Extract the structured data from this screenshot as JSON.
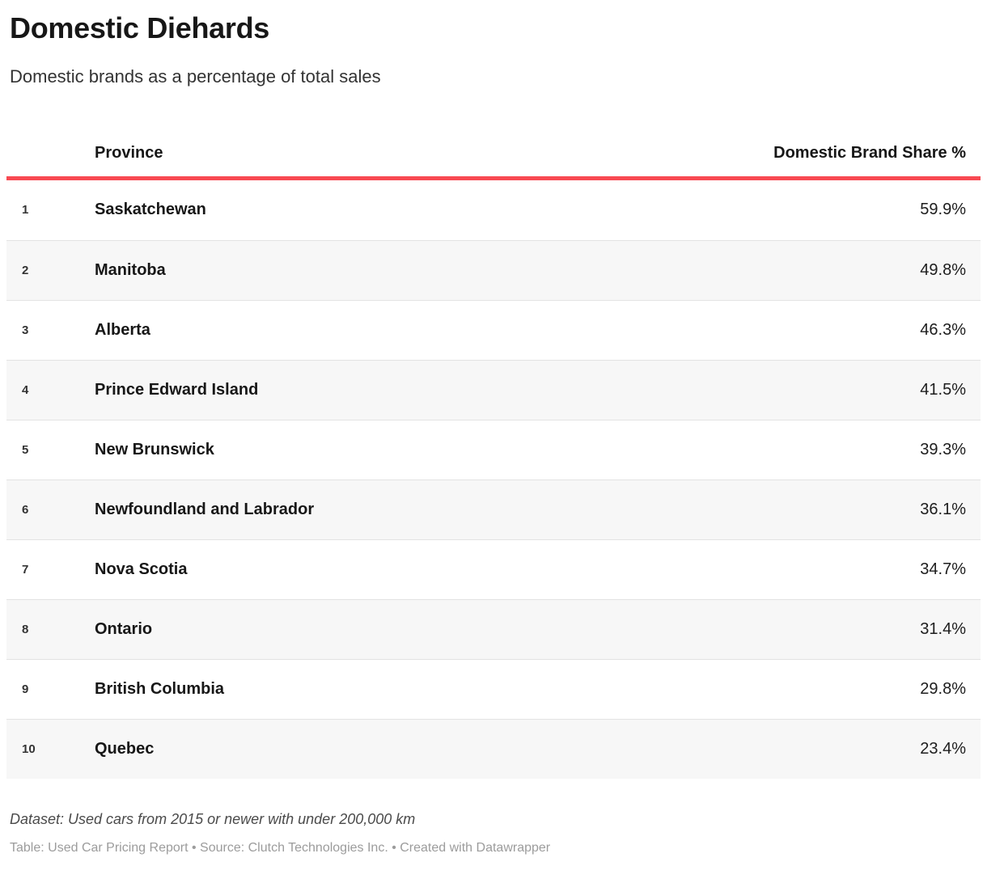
{
  "header": {
    "title": "Domestic Diehards",
    "subtitle": "Domestic brands as a percentage of total sales"
  },
  "table": {
    "col_rank_label": "",
    "col_province_label": "Province",
    "col_share_label": "Domestic Brand Share %",
    "rows": [
      {
        "rank": "1",
        "province": "Saskatchewan",
        "share": "59.9%"
      },
      {
        "rank": "2",
        "province": "Manitoba",
        "share": "49.8%"
      },
      {
        "rank": "3",
        "province": "Alberta",
        "share": "46.3%"
      },
      {
        "rank": "4",
        "province": "Prince Edward Island",
        "share": "41.5%"
      },
      {
        "rank": "5",
        "province": "New Brunswick",
        "share": "39.3%"
      },
      {
        "rank": "6",
        "province": "Newfoundland and Labrador",
        "share": "36.1%"
      },
      {
        "rank": "7",
        "province": "Nova Scotia",
        "share": "34.7%"
      },
      {
        "rank": "8",
        "province": "Ontario",
        "share": "31.4%"
      },
      {
        "rank": "9",
        "province": "British Columbia",
        "share": "29.8%"
      },
      {
        "rank": "10",
        "province": "Quebec",
        "share": "23.4%"
      }
    ]
  },
  "footer": {
    "dataset_note": "Dataset: Used cars from 2015 or newer with under 200,000 km",
    "attribution": "Table: Used Car Pricing Report • Source: Clutch Technologies Inc. • Created with Datawrapper"
  },
  "colors": {
    "accent_red": "#f84952",
    "alt_row_bg": "#f7f7f7",
    "row_divider": "#e3e3e3",
    "title_text": "#171717",
    "attribution_text": "#9c9c9c"
  },
  "chart_data": {
    "type": "table",
    "title": "Domestic Diehards",
    "subtitle": "Domestic brands as a percentage of total sales",
    "columns": [
      "Province",
      "Domestic Brand Share %"
    ],
    "categories": [
      "Saskatchewan",
      "Manitoba",
      "Alberta",
      "Prince Edward Island",
      "New Brunswick",
      "Newfoundland and Labrador",
      "Nova Scotia",
      "Ontario",
      "British Columbia",
      "Quebec"
    ],
    "values": [
      59.9,
      49.8,
      46.3,
      41.5,
      39.3,
      36.1,
      34.7,
      31.4,
      29.8,
      23.4
    ],
    "ranks": [
      1,
      2,
      3,
      4,
      5,
      6,
      7,
      8,
      9,
      10
    ],
    "value_unit": "%",
    "notes": "Dataset: Used cars from 2015 or newer with under 200,000 km",
    "source": "Table: Used Car Pricing Report • Source: Clutch Technologies Inc. • Created with Datawrapper",
    "layout_hints": {
      "row_striping": true,
      "header_rule_color": "#f84952",
      "value_alignment": "right"
    }
  }
}
